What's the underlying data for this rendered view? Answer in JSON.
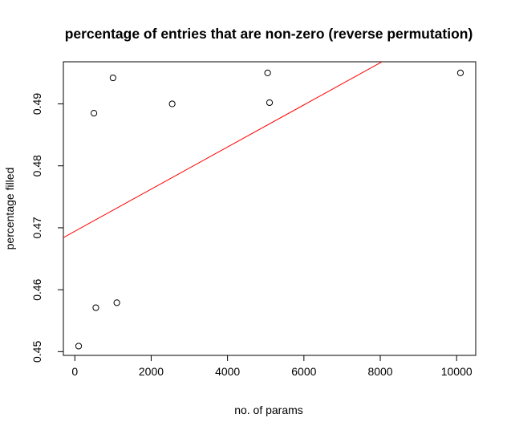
{
  "chart_data": {
    "type": "scatter",
    "title": "percentage of entries that are non-zero (reverse permutation)",
    "xlabel": "no. of params",
    "ylabel": "percentage filled",
    "xlim": [
      -300,
      10500
    ],
    "ylim": [
      0.4494,
      0.4968
    ],
    "x_ticks": [
      0,
      2000,
      4000,
      6000,
      8000,
      10000
    ],
    "y_ticks": [
      0.45,
      0.46,
      0.47,
      0.48,
      0.49
    ],
    "x_tick_labels": [
      "0",
      "2000",
      "4000",
      "6000",
      "8000",
      "10000"
    ],
    "y_tick_labels": [
      "0.45",
      "0.46",
      "0.47",
      "0.48",
      "0.49"
    ],
    "grid": false,
    "points": [
      {
        "x": 100,
        "y": 0.4509
      },
      {
        "x": 500,
        "y": 0.4885
      },
      {
        "x": 550,
        "y": 0.4571
      },
      {
        "x": 1000,
        "y": 0.4942
      },
      {
        "x": 1100,
        "y": 0.4579
      },
      {
        "x": 2550,
        "y": 0.49
      },
      {
        "x": 5050,
        "y": 0.495
      },
      {
        "x": 5100,
        "y": 0.4902
      },
      {
        "x": 10100,
        "y": 0.495
      }
    ],
    "fit_line": {
      "intercept": 0.46944,
      "slope": 3.4e-06,
      "color": "#ff0000"
    },
    "point_color": "#000000"
  }
}
